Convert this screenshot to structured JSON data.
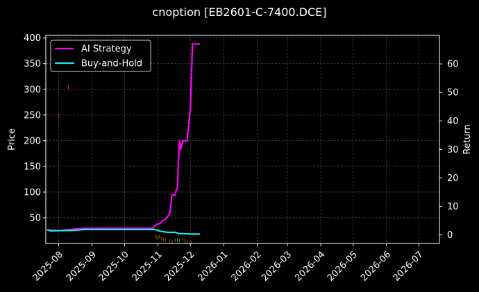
{
  "chart_data": {
    "type": "line",
    "title": "cnoption [EB2601-C-7400.DCE]",
    "ylabel_left": "Price",
    "ylabel_right": "Return",
    "xlim": [
      "2025-07-20",
      "2026-07-20"
    ],
    "ylim_left": [
      0,
      405
    ],
    "ylim_right": [
      -3,
      70
    ],
    "x_ticks": [
      "2025-08",
      "2025-09",
      "2025-10",
      "2025-11",
      "2025-12",
      "2026-01",
      "2026-02",
      "2026-03",
      "2026-04",
      "2026-05",
      "2026-06",
      "2026-07"
    ],
    "y_ticks_left": [
      50,
      100,
      150,
      200,
      250,
      300,
      350,
      400
    ],
    "y_ticks_right": [
      0,
      10,
      20,
      30,
      40,
      50,
      60
    ],
    "grid": true,
    "legend_position": "top-left",
    "series": [
      {
        "name": "AI Strategy",
        "axis": "right",
        "color": "#ff00ff",
        "x": [
          "2025-07-21",
          "2025-08-01",
          "2025-08-15",
          "2025-08-25",
          "2025-09-15",
          "2025-10-15",
          "2025-10-27",
          "2025-10-29",
          "2025-10-31",
          "2025-11-03",
          "2025-11-05",
          "2025-11-07",
          "2025-11-10",
          "2025-11-12",
          "2025-11-14",
          "2025-11-17",
          "2025-11-18",
          "2025-11-19",
          "2025-11-20",
          "2025-11-21",
          "2025-11-22",
          "2025-11-24",
          "2025-11-25",
          "2025-11-26",
          "2025-11-27",
          "2025-11-28",
          "2025-12-01",
          "2025-12-02",
          "2025-12-03",
          "2025-12-04",
          "2025-12-10"
        ],
        "values": [
          1.8,
          1.5,
          2.0,
          2.3,
          2.3,
          2.3,
          2.3,
          3.0,
          3.8,
          4.0,
          5.0,
          5.2,
          6.5,
          7.5,
          14.0,
          14.0,
          16.0,
          16.3,
          26.0,
          33.0,
          30.0,
          33.0,
          33.0,
          33.0,
          33.0,
          33.0,
          44.0,
          55.0,
          67.0,
          67.0,
          67.0
        ]
      },
      {
        "name": "Buy-and-Hold",
        "axis": "right",
        "color": "#1ee6e6",
        "x": [
          "2025-07-21",
          "2025-07-25",
          "2025-08-01",
          "2025-08-15",
          "2025-08-25",
          "2025-09-15",
          "2025-10-15",
          "2025-10-29",
          "2025-11-03",
          "2025-11-10",
          "2025-11-17",
          "2025-11-20",
          "2025-11-25",
          "2025-12-01",
          "2025-12-10"
        ],
        "values": [
          1.8,
          1.4,
          1.5,
          1.6,
          1.9,
          1.9,
          1.9,
          1.9,
          1.3,
          0.9,
          0.9,
          0.5,
          0.4,
          0.3,
          0.3
        ]
      }
    ],
    "candlesticks": {
      "axis": "left",
      "up_color": "#00c000",
      "down_color": "#ff2020",
      "points": [
        {
          "x": "2025-08-01",
          "y": 248,
          "color": "down"
        },
        {
          "x": "2025-08-10",
          "y": 304,
          "color": "down"
        },
        {
          "x": "2025-10-30",
          "y": 14,
          "color": "down"
        },
        {
          "x": "2025-10-31",
          "y": 11,
          "color": "down"
        },
        {
          "x": "2025-11-02",
          "y": 13,
          "color": "up"
        },
        {
          "x": "2025-11-04",
          "y": 10,
          "color": "down"
        },
        {
          "x": "2025-11-06",
          "y": 8,
          "color": "up"
        },
        {
          "x": "2025-11-08",
          "y": 7,
          "color": "down"
        },
        {
          "x": "2025-11-12",
          "y": 5,
          "color": "down"
        },
        {
          "x": "2025-11-14",
          "y": 4,
          "color": "up"
        },
        {
          "x": "2025-11-17",
          "y": 6,
          "color": "down"
        },
        {
          "x": "2025-11-19",
          "y": 7,
          "color": "up"
        },
        {
          "x": "2025-11-21",
          "y": 6,
          "color": "up"
        },
        {
          "x": "2025-11-24",
          "y": 8,
          "color": "down"
        },
        {
          "x": "2025-11-26",
          "y": 5,
          "color": "up"
        },
        {
          "x": "2025-11-28",
          "y": 3,
          "color": "down"
        },
        {
          "x": "2025-12-02",
          "y": 2,
          "color": "down"
        }
      ]
    }
  }
}
